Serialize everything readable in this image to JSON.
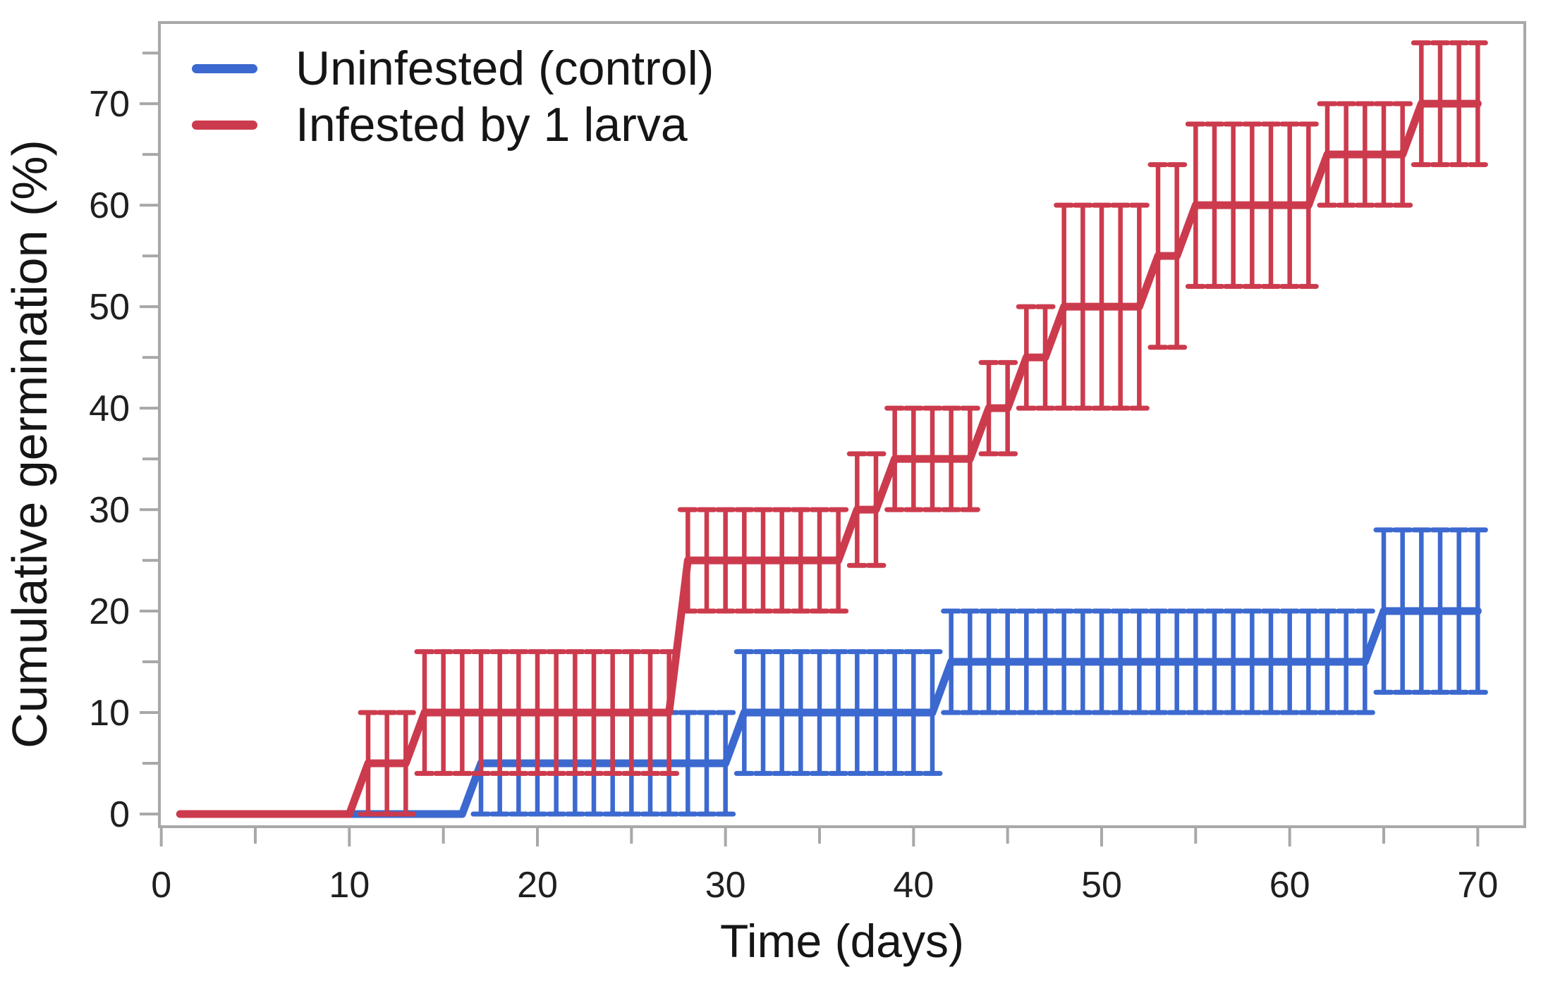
{
  "page": {
    "background": "#ffffff"
  },
  "legend": {
    "items": [
      {
        "label": "Uninfested (control)"
      },
      {
        "label": "Infested by 1 larva"
      }
    ]
  },
  "chart_data": {
    "type": "line",
    "subtype": "cumulative-step-with-error-bars",
    "title": "",
    "xlabel": "Time (days)",
    "ylabel": "Cumulative germination (%)",
    "xlim": [
      -0.1,
      72.5
    ],
    "ylim": [
      -1.25,
      78
    ],
    "grid": false,
    "legend_position": "top-left",
    "axis_color": "#a8a8a8",
    "tick_label_color": "#1f1f1f",
    "x_ticks_labeled": [
      0,
      10,
      20,
      30,
      40,
      50,
      60,
      70
    ],
    "x_ticks_minor": [
      5,
      15,
      25,
      35,
      45,
      55,
      65
    ],
    "y_ticks_labeled": [
      0,
      10,
      20,
      30,
      40,
      50,
      60,
      70
    ],
    "y_ticks_minor": [
      5,
      15,
      25,
      35,
      45,
      55,
      65,
      75
    ],
    "series": [
      {
        "name": "Uninfested (control)",
        "color": "#3c69cf",
        "steps": [
          {
            "from": 1,
            "to": 16,
            "value": 0
          },
          {
            "from": 17,
            "to": 30,
            "value": 5
          },
          {
            "from": 31,
            "to": 41,
            "value": 10
          },
          {
            "from": 42,
            "to": 64,
            "value": 15
          },
          {
            "from": 65,
            "to": 70,
            "value": 20
          }
        ],
        "error_bars": [
          {
            "from": 17,
            "to": 30,
            "center": 5,
            "lo": 0,
            "hi": 10
          },
          {
            "from": 31,
            "to": 41,
            "center": 10,
            "lo": 4,
            "hi": 16
          },
          {
            "from": 42,
            "to": 64,
            "center": 15,
            "lo": 10,
            "hi": 20
          },
          {
            "from": 65,
            "to": 70,
            "center": 20,
            "lo": 12,
            "hi": 28
          }
        ]
      },
      {
        "name": "Infested by 1 larva",
        "color": "#cc3b4d",
        "steps": [
          {
            "from": 1,
            "to": 10,
            "value": 0
          },
          {
            "from": 11,
            "to": 13,
            "value": 5
          },
          {
            "from": 14,
            "to": 27,
            "value": 10
          },
          {
            "from": 28,
            "to": 36,
            "value": 25
          },
          {
            "from": 37,
            "to": 38,
            "value": 30
          },
          {
            "from": 39,
            "to": 43,
            "value": 35
          },
          {
            "from": 44,
            "to": 45,
            "value": 40
          },
          {
            "from": 46,
            "to": 47,
            "value": 45
          },
          {
            "from": 48,
            "to": 52,
            "value": 50
          },
          {
            "from": 53,
            "to": 54,
            "value": 55
          },
          {
            "from": 55,
            "to": 61,
            "value": 60
          },
          {
            "from": 62,
            "to": 66,
            "value": 65
          },
          {
            "from": 67,
            "to": 70,
            "value": 70
          }
        ],
        "error_bars": [
          {
            "from": 11,
            "to": 13,
            "center": 5,
            "lo": 0,
            "hi": 10
          },
          {
            "from": 14,
            "to": 27,
            "center": 10,
            "lo": 4,
            "hi": 16
          },
          {
            "from": 28,
            "to": 36,
            "center": 25,
            "lo": 20,
            "hi": 30
          },
          {
            "from": 37,
            "to": 38,
            "center": 30,
            "lo": 24.5,
            "hi": 35.5
          },
          {
            "from": 39,
            "to": 43,
            "center": 35,
            "lo": 30,
            "hi": 40
          },
          {
            "from": 44,
            "to": 45,
            "center": 40,
            "lo": 35.5,
            "hi": 44.5
          },
          {
            "from": 46,
            "to": 47,
            "center": 45,
            "lo": 40,
            "hi": 50
          },
          {
            "from": 48,
            "to": 52,
            "center": 50,
            "lo": 40,
            "hi": 60
          },
          {
            "from": 53,
            "to": 54,
            "center": 55,
            "lo": 46,
            "hi": 64
          },
          {
            "from": 55,
            "to": 61,
            "center": 60,
            "lo": 52,
            "hi": 68
          },
          {
            "from": 62,
            "to": 66,
            "center": 65,
            "lo": 60,
            "hi": 70
          },
          {
            "from": 67,
            "to": 70,
            "center": 70,
            "lo": 64,
            "hi": 76
          }
        ]
      }
    ]
  }
}
